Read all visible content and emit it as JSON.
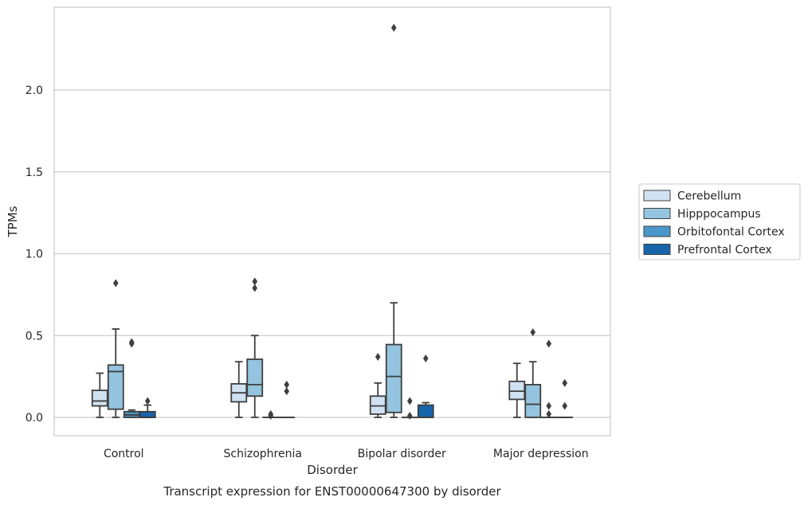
{
  "chart_data": {
    "type": "box",
    "caption": "Transcript expression for ENST00000647300 by disorder",
    "xlabel": "Disorder",
    "ylabel": "TPMs",
    "ylim": [
      -0.115,
      2.5
    ],
    "yticks": [
      0.0,
      0.5,
      1.0,
      1.5,
      2.0
    ],
    "ytick_labels": [
      "0.0",
      "0.5",
      "1.0",
      "1.5",
      "2.0"
    ],
    "grid": "horizontal",
    "legend_position": "right, outside plot",
    "categories": [
      "Control",
      "Schizophrenia",
      "Bipolar disorder",
      "Major depression"
    ],
    "series": [
      {
        "name": "Cerebellum",
        "color": "#d0e1f2",
        "boxes": [
          {
            "whislo": 0.0,
            "q1": 0.07,
            "med": 0.1,
            "q3": 0.165,
            "whishi": 0.27,
            "fliers": []
          },
          {
            "whislo": 0.0,
            "q1": 0.095,
            "med": 0.15,
            "q3": 0.205,
            "whishi": 0.34,
            "fliers": []
          },
          {
            "whislo": 0.0,
            "q1": 0.02,
            "med": 0.07,
            "q3": 0.13,
            "whishi": 0.21,
            "fliers": [
              0.37
            ]
          },
          {
            "whislo": 0.0,
            "q1": 0.11,
            "med": 0.16,
            "q3": 0.22,
            "whishi": 0.33,
            "fliers": []
          }
        ]
      },
      {
        "name": "Hipppocampus",
        "color": "#94c4df",
        "boxes": [
          {
            "whislo": 0.0,
            "q1": 0.05,
            "med": 0.28,
            "q3": 0.32,
            "whishi": 0.54,
            "fliers": [
              0.82
            ]
          },
          {
            "whislo": 0.0,
            "q1": 0.13,
            "med": 0.2,
            "q3": 0.355,
            "whishi": 0.5,
            "fliers": [
              0.79,
              0.83
            ]
          },
          {
            "whislo": 0.0,
            "q1": 0.03,
            "med": 0.25,
            "q3": 0.445,
            "whishi": 0.7,
            "fliers": [
              2.38
            ]
          },
          {
            "whislo": 0.0,
            "q1": 0.0,
            "med": 0.08,
            "q3": 0.2,
            "whishi": 0.34,
            "fliers": [
              0.52
            ]
          }
        ]
      },
      {
        "name": "Orbitofontal Cortex",
        "color": "#4a98c9",
        "boxes": [
          {
            "whislo": 0.0,
            "q1": 0.0,
            "med": 0.015,
            "q3": 0.035,
            "whishi": 0.045,
            "fliers": [
              0.45,
              0.46
            ]
          },
          {
            "whislo": 0.0,
            "q1": 0.0,
            "med": 0.0,
            "q3": 0.0,
            "whishi": 0.0,
            "fliers": [
              0.01,
              0.02
            ]
          },
          {
            "whislo": 0.0,
            "q1": 0.0,
            "med": 0.0,
            "q3": 0.0,
            "whishi": 0.0,
            "fliers": [
              0.01,
              0.1
            ]
          },
          {
            "whislo": 0.0,
            "q1": 0.0,
            "med": 0.0,
            "q3": 0.0,
            "whishi": 0.0,
            "fliers": [
              0.02,
              0.07,
              0.45
            ]
          }
        ]
      },
      {
        "name": "Prefrontal Cortex",
        "color": "#1764ab",
        "boxes": [
          {
            "whislo": 0.0,
            "q1": 0.0,
            "med": 0.0,
            "q3": 0.035,
            "whishi": 0.075,
            "fliers": [
              0.1
            ]
          },
          {
            "whislo": 0.0,
            "q1": 0.0,
            "med": 0.0,
            "q3": 0.0,
            "whishi": 0.0,
            "fliers": [
              0.16,
              0.2
            ]
          },
          {
            "whislo": 0.0,
            "q1": 0.0,
            "med": 0.0,
            "q3": 0.075,
            "whishi": 0.09,
            "fliers": [
              0.36
            ]
          },
          {
            "whislo": 0.0,
            "q1": 0.0,
            "med": 0.0,
            "q3": 0.0,
            "whishi": 0.0,
            "fliers": [
              0.07,
              0.21
            ]
          }
        ]
      }
    ]
  }
}
